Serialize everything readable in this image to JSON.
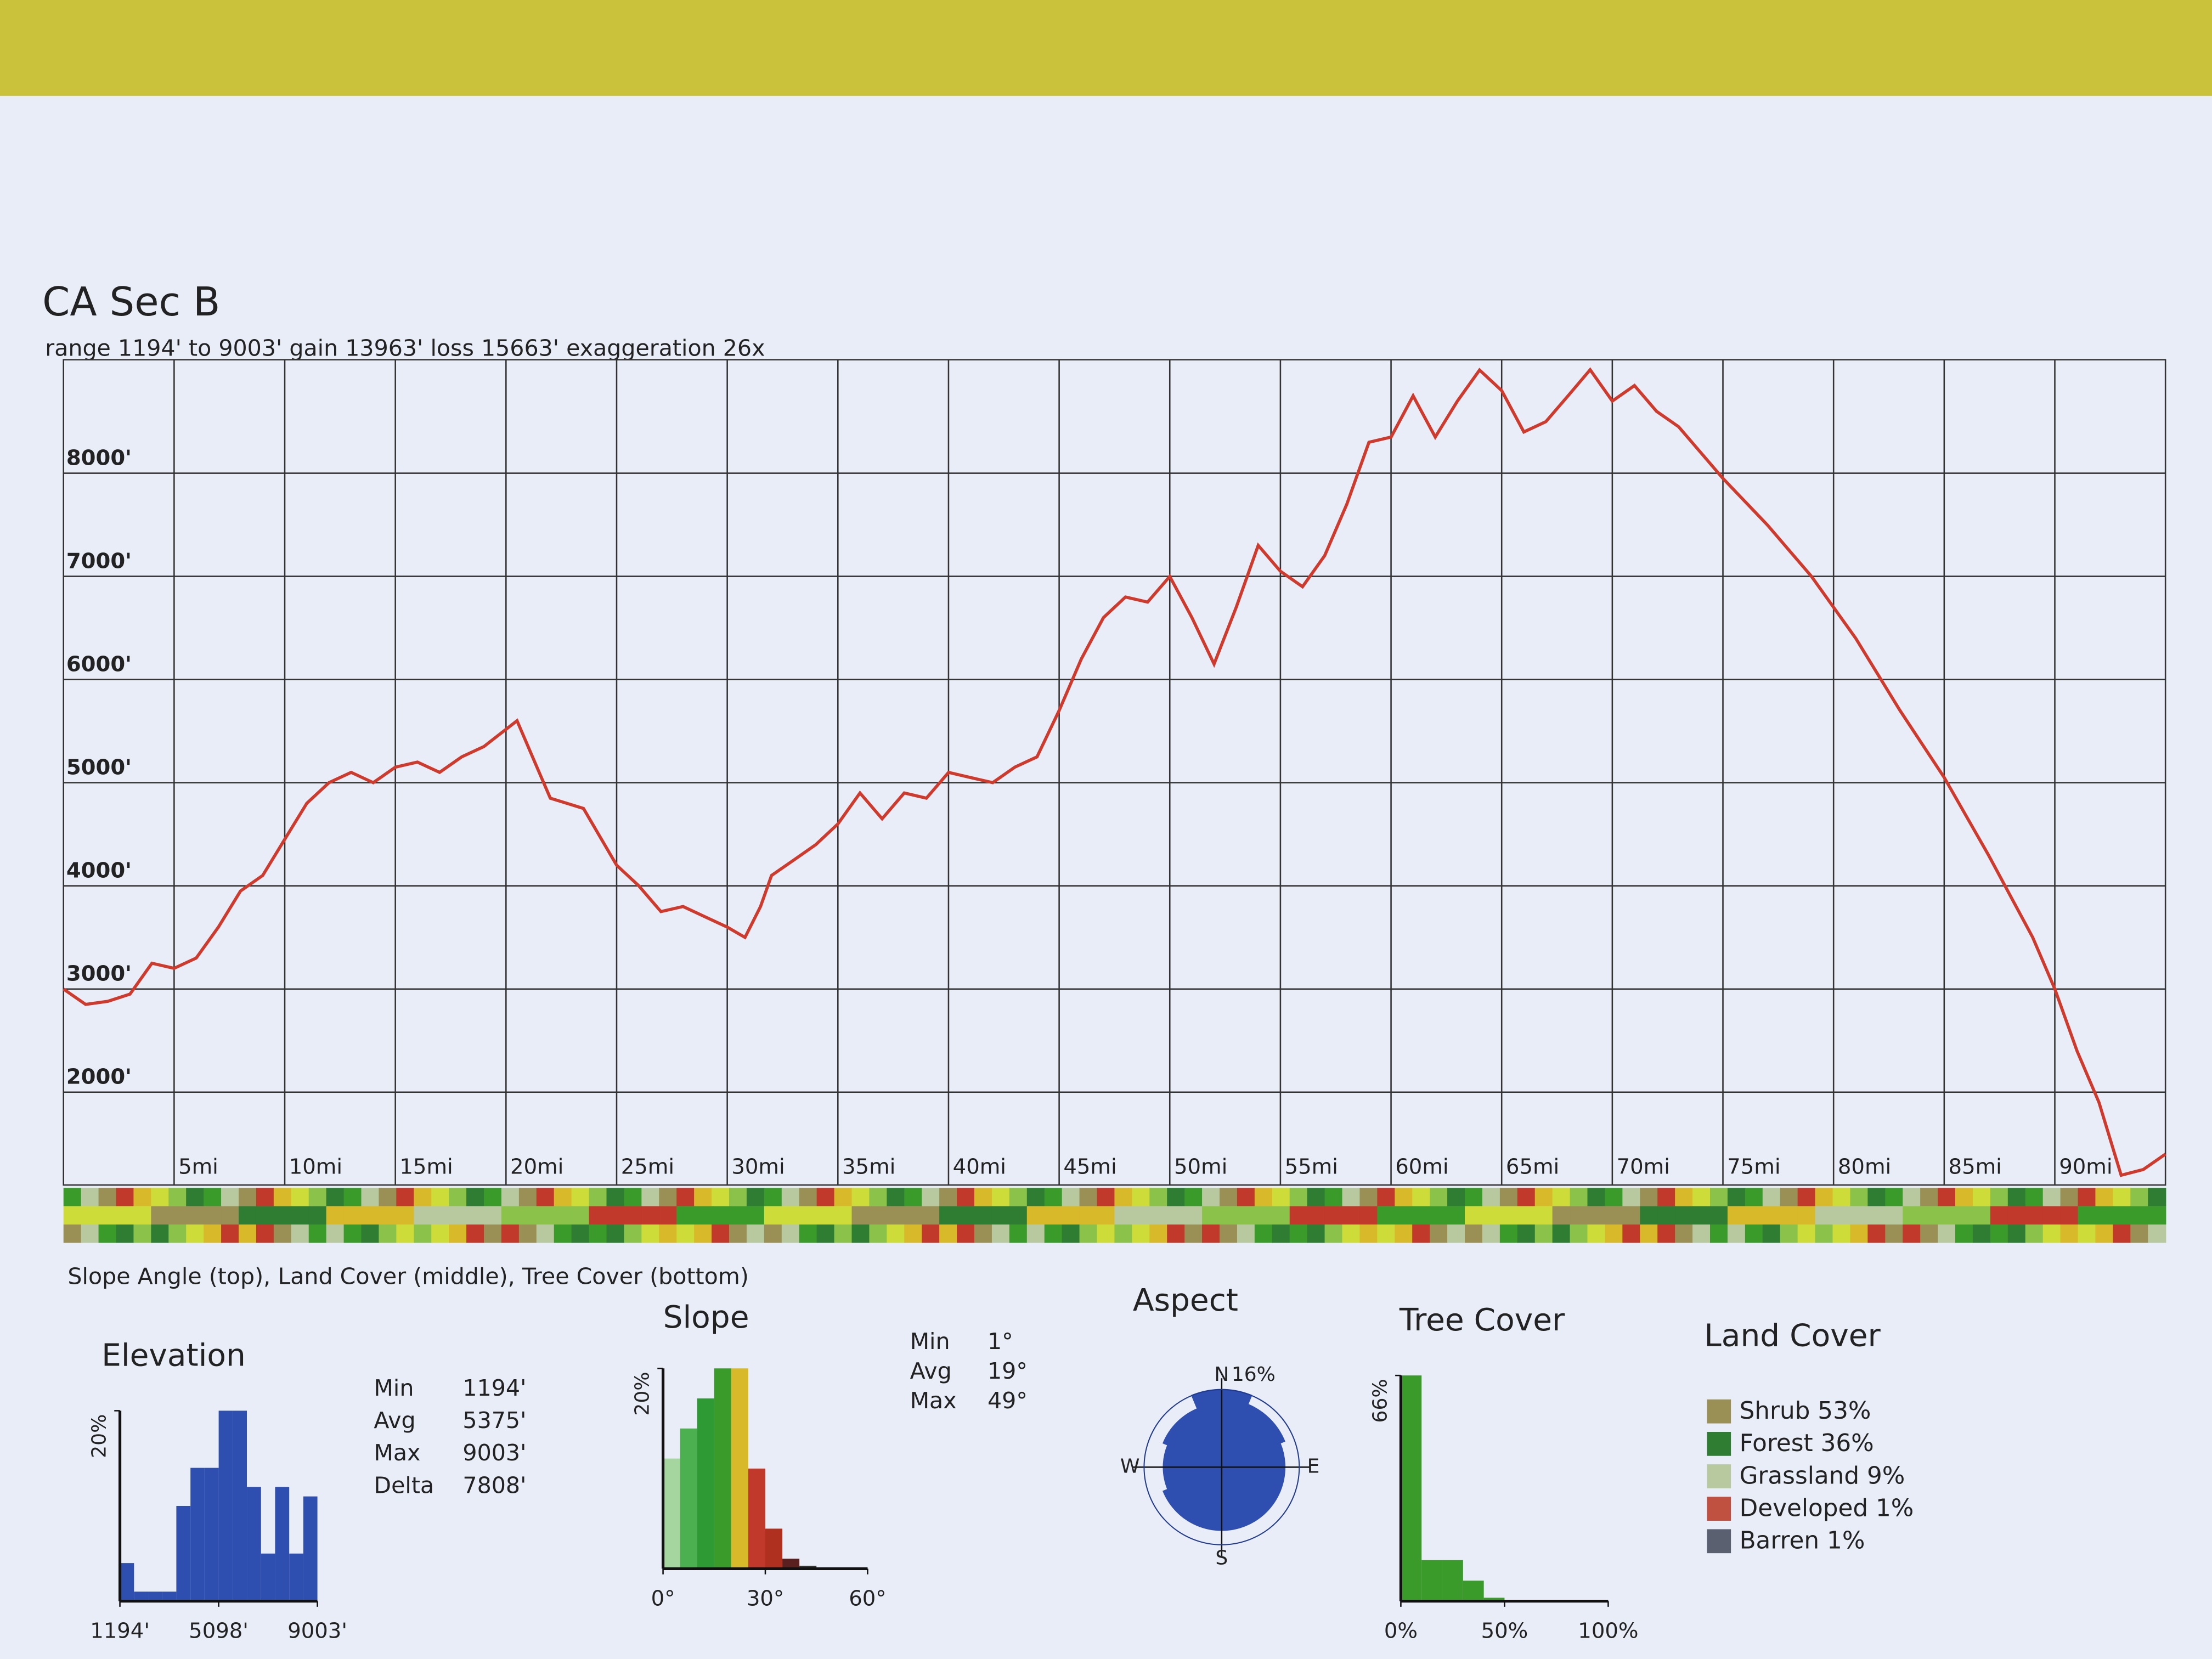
{
  "chart_data": [
    {
      "type": "line",
      "title": "CA Sec B",
      "subtitle": "range 1194' to 9003'  gain 13963'  loss 15663'  exaggeration 26x",
      "x": [
        0,
        1,
        2,
        3,
        4,
        5,
        6,
        7,
        8,
        9,
        10,
        11,
        12,
        13,
        14,
        15,
        16,
        17,
        18,
        19,
        20.5,
        21.5,
        22,
        23.5,
        25,
        26,
        27,
        28,
        29,
        30,
        30.8,
        31.5,
        32,
        33,
        34,
        35,
        36,
        37,
        38,
        39,
        40,
        41,
        42,
        43,
        44,
        45,
        46,
        47,
        48,
        49,
        50,
        51,
        52,
        53,
        54,
        55,
        56,
        57,
        58,
        59,
        60,
        61,
        62,
        63,
        64,
        65,
        66,
        67,
        68,
        69,
        70,
        71,
        72,
        73,
        74,
        75,
        77,
        79,
        81,
        83,
        85,
        87,
        89,
        90,
        91,
        92,
        93,
        94,
        95
      ],
      "values": [
        3000,
        2850,
        2880,
        2950,
        3250,
        3200,
        3300,
        3600,
        3950,
        4100,
        4450,
        4800,
        5000,
        5100,
        5000,
        5150,
        5200,
        5100,
        5250,
        5350,
        5600,
        5100,
        4850,
        4750,
        4200,
        4000,
        3750,
        3800,
        3700,
        3600,
        3500,
        3800,
        4100,
        4250,
        4400,
        4600,
        4900,
        4650,
        4900,
        4850,
        5100,
        5050,
        5000,
        5150,
        5250,
        5700,
        6200,
        6600,
        6800,
        6750,
        7000,
        6600,
        6150,
        6700,
        7300,
        7050,
        6900,
        7200,
        7700,
        8300,
        8350,
        8750,
        8350,
        8700,
        9000,
        8800,
        8400,
        8500,
        8750,
        9003,
        8700,
        8850,
        8600,
        8450,
        8200,
        7950,
        7500,
        7000,
        6400,
        5700,
        5050,
        4300,
        3500,
        3000,
        2400,
        1900,
        1194,
        1250,
        1400
      ],
      "color": "#d03a2c",
      "xlim": [
        0,
        95
      ],
      "ylim": [
        1100,
        9100
      ],
      "xticks": [
        {
          "value": 5,
          "label": "5mi"
        },
        {
          "value": 10,
          "label": "10mi"
        },
        {
          "value": 15,
          "label": "15mi"
        },
        {
          "value": 20,
          "label": "20mi"
        },
        {
          "value": 25,
          "label": "25mi"
        },
        {
          "value": 30,
          "label": "30mi"
        },
        {
          "value": 35,
          "label": "35mi"
        },
        {
          "value": 40,
          "label": "40mi"
        },
        {
          "value": 45,
          "label": "45mi"
        },
        {
          "value": 50,
          "label": "50mi"
        },
        {
          "value": 55,
          "label": "55mi"
        },
        {
          "value": 60,
          "label": "60mi"
        },
        {
          "value": 65,
          "label": "65mi"
        },
        {
          "value": 70,
          "label": "70mi"
        },
        {
          "value": 75,
          "label": "75mi"
        },
        {
          "value": 80,
          "label": "80mi"
        },
        {
          "value": 85,
          "label": "85mi"
        },
        {
          "value": 90,
          "label": "90mi"
        }
      ],
      "yticks": [
        {
          "value": 2000,
          "label": "2000'"
        },
        {
          "value": 3000,
          "label": "3000'"
        },
        {
          "value": 4000,
          "label": "4000'"
        },
        {
          "value": 5000,
          "label": "5000'"
        },
        {
          "value": 6000,
          "label": "6000'"
        },
        {
          "value": 7000,
          "label": "7000'"
        },
        {
          "value": 8000,
          "label": "8000'"
        }
      ],
      "grid": true,
      "caption": "Slope Angle (top), Land Cover (middle), Tree Cover (bottom)"
    },
    {
      "type": "histogram",
      "title": "Elevation",
      "bins": [
        1194,
        1752,
        2310,
        2867,
        3425,
        3984,
        4541,
        5099,
        5657,
        6215,
        6773,
        7330,
        7888,
        8446,
        9003
      ],
      "values": [
        4,
        1,
        1,
        1,
        10,
        14,
        14,
        20,
        20,
        12,
        5,
        12,
        5,
        11
      ],
      "color": "#2f4fb0",
      "xlim": [
        1194,
        9003
      ],
      "xticks": [
        {
          "value": 1194,
          "label": "1194'"
        },
        {
          "value": 5098,
          "label": "5098'"
        },
        {
          "value": 9003,
          "label": "9003'"
        }
      ],
      "ylim": [
        0,
        20
      ],
      "yticks": [
        {
          "value": 20,
          "label": "20%"
        }
      ],
      "stats": [
        {
          "label": "Min",
          "value": "1194'"
        },
        {
          "label": "Avg",
          "value": "5375'"
        },
        {
          "label": "Max",
          "value": "9003'"
        },
        {
          "label": "Delta",
          "value": "7808'"
        }
      ]
    },
    {
      "type": "histogram",
      "title": "Slope",
      "bins": [
        0,
        5,
        10,
        15,
        20,
        25,
        30,
        35,
        40,
        45,
        50,
        55,
        60
      ],
      "values": [
        11,
        14,
        17,
        20,
        20,
        10,
        4,
        1,
        0.3,
        0,
        0,
        0
      ],
      "colors": [
        "#a5d6a0",
        "#4caf50",
        "#2e9a34",
        "#3a9a2a",
        "#d8b92a",
        "#c0392b",
        "#b03020",
        "#5a2020",
        "#333333",
        "#333333",
        "#333333",
        "#333333"
      ],
      "xlim": [
        0,
        60
      ],
      "xticks": [
        {
          "value": 0,
          "label": "0°"
        },
        {
          "value": 30,
          "label": "30°"
        },
        {
          "value": 60,
          "label": "60°"
        }
      ],
      "ylim": [
        0,
        20
      ],
      "yticks": [
        {
          "value": 20,
          "label": "20%"
        }
      ],
      "stats": [
        {
          "label": "Min",
          "value": "1°"
        },
        {
          "label": "Avg",
          "value": "19°"
        },
        {
          "label": "Max",
          "value": "49°"
        }
      ]
    },
    {
      "type": "polar",
      "title": "Aspect",
      "categories": [
        "N",
        null,
        "E",
        null,
        "S",
        null,
        "W",
        null
      ],
      "values": [
        16,
        14,
        13,
        13,
        13,
        13,
        12,
        13
      ],
      "color": "#2f4fb0",
      "rlim": [
        0,
        16
      ],
      "rticks": [
        {
          "value": 16,
          "label": "16%"
        }
      ]
    },
    {
      "type": "histogram",
      "title": "Tree Cover",
      "bins": [
        0,
        10,
        20,
        30,
        40,
        50,
        60,
        70,
        80,
        90,
        100
      ],
      "values": [
        66,
        12,
        12,
        6,
        1,
        0,
        0,
        0,
        0,
        0
      ],
      "color": "#3a9a2a",
      "xlim": [
        0,
        100
      ],
      "xticks": [
        {
          "value": 0,
          "label": "0%"
        },
        {
          "value": 50,
          "label": "50%"
        },
        {
          "value": 100,
          "label": "100%"
        }
      ],
      "ylim": [
        0,
        66
      ],
      "yticks": [
        {
          "value": 66,
          "label": "66%"
        }
      ]
    },
    {
      "type": "legend",
      "title": "Land Cover",
      "items": [
        {
          "name": "Shrub 53%",
          "color": "#9a8f55"
        },
        {
          "name": "Forest 36%",
          "color": "#2e7d32"
        },
        {
          "name": "Grassland 9%",
          "color": "#b8c9a0"
        },
        {
          "name": "Developed 1%",
          "color": "#c05040"
        },
        {
          "name": "Barren 1%",
          "color": "#5a6070"
        }
      ]
    }
  ]
}
